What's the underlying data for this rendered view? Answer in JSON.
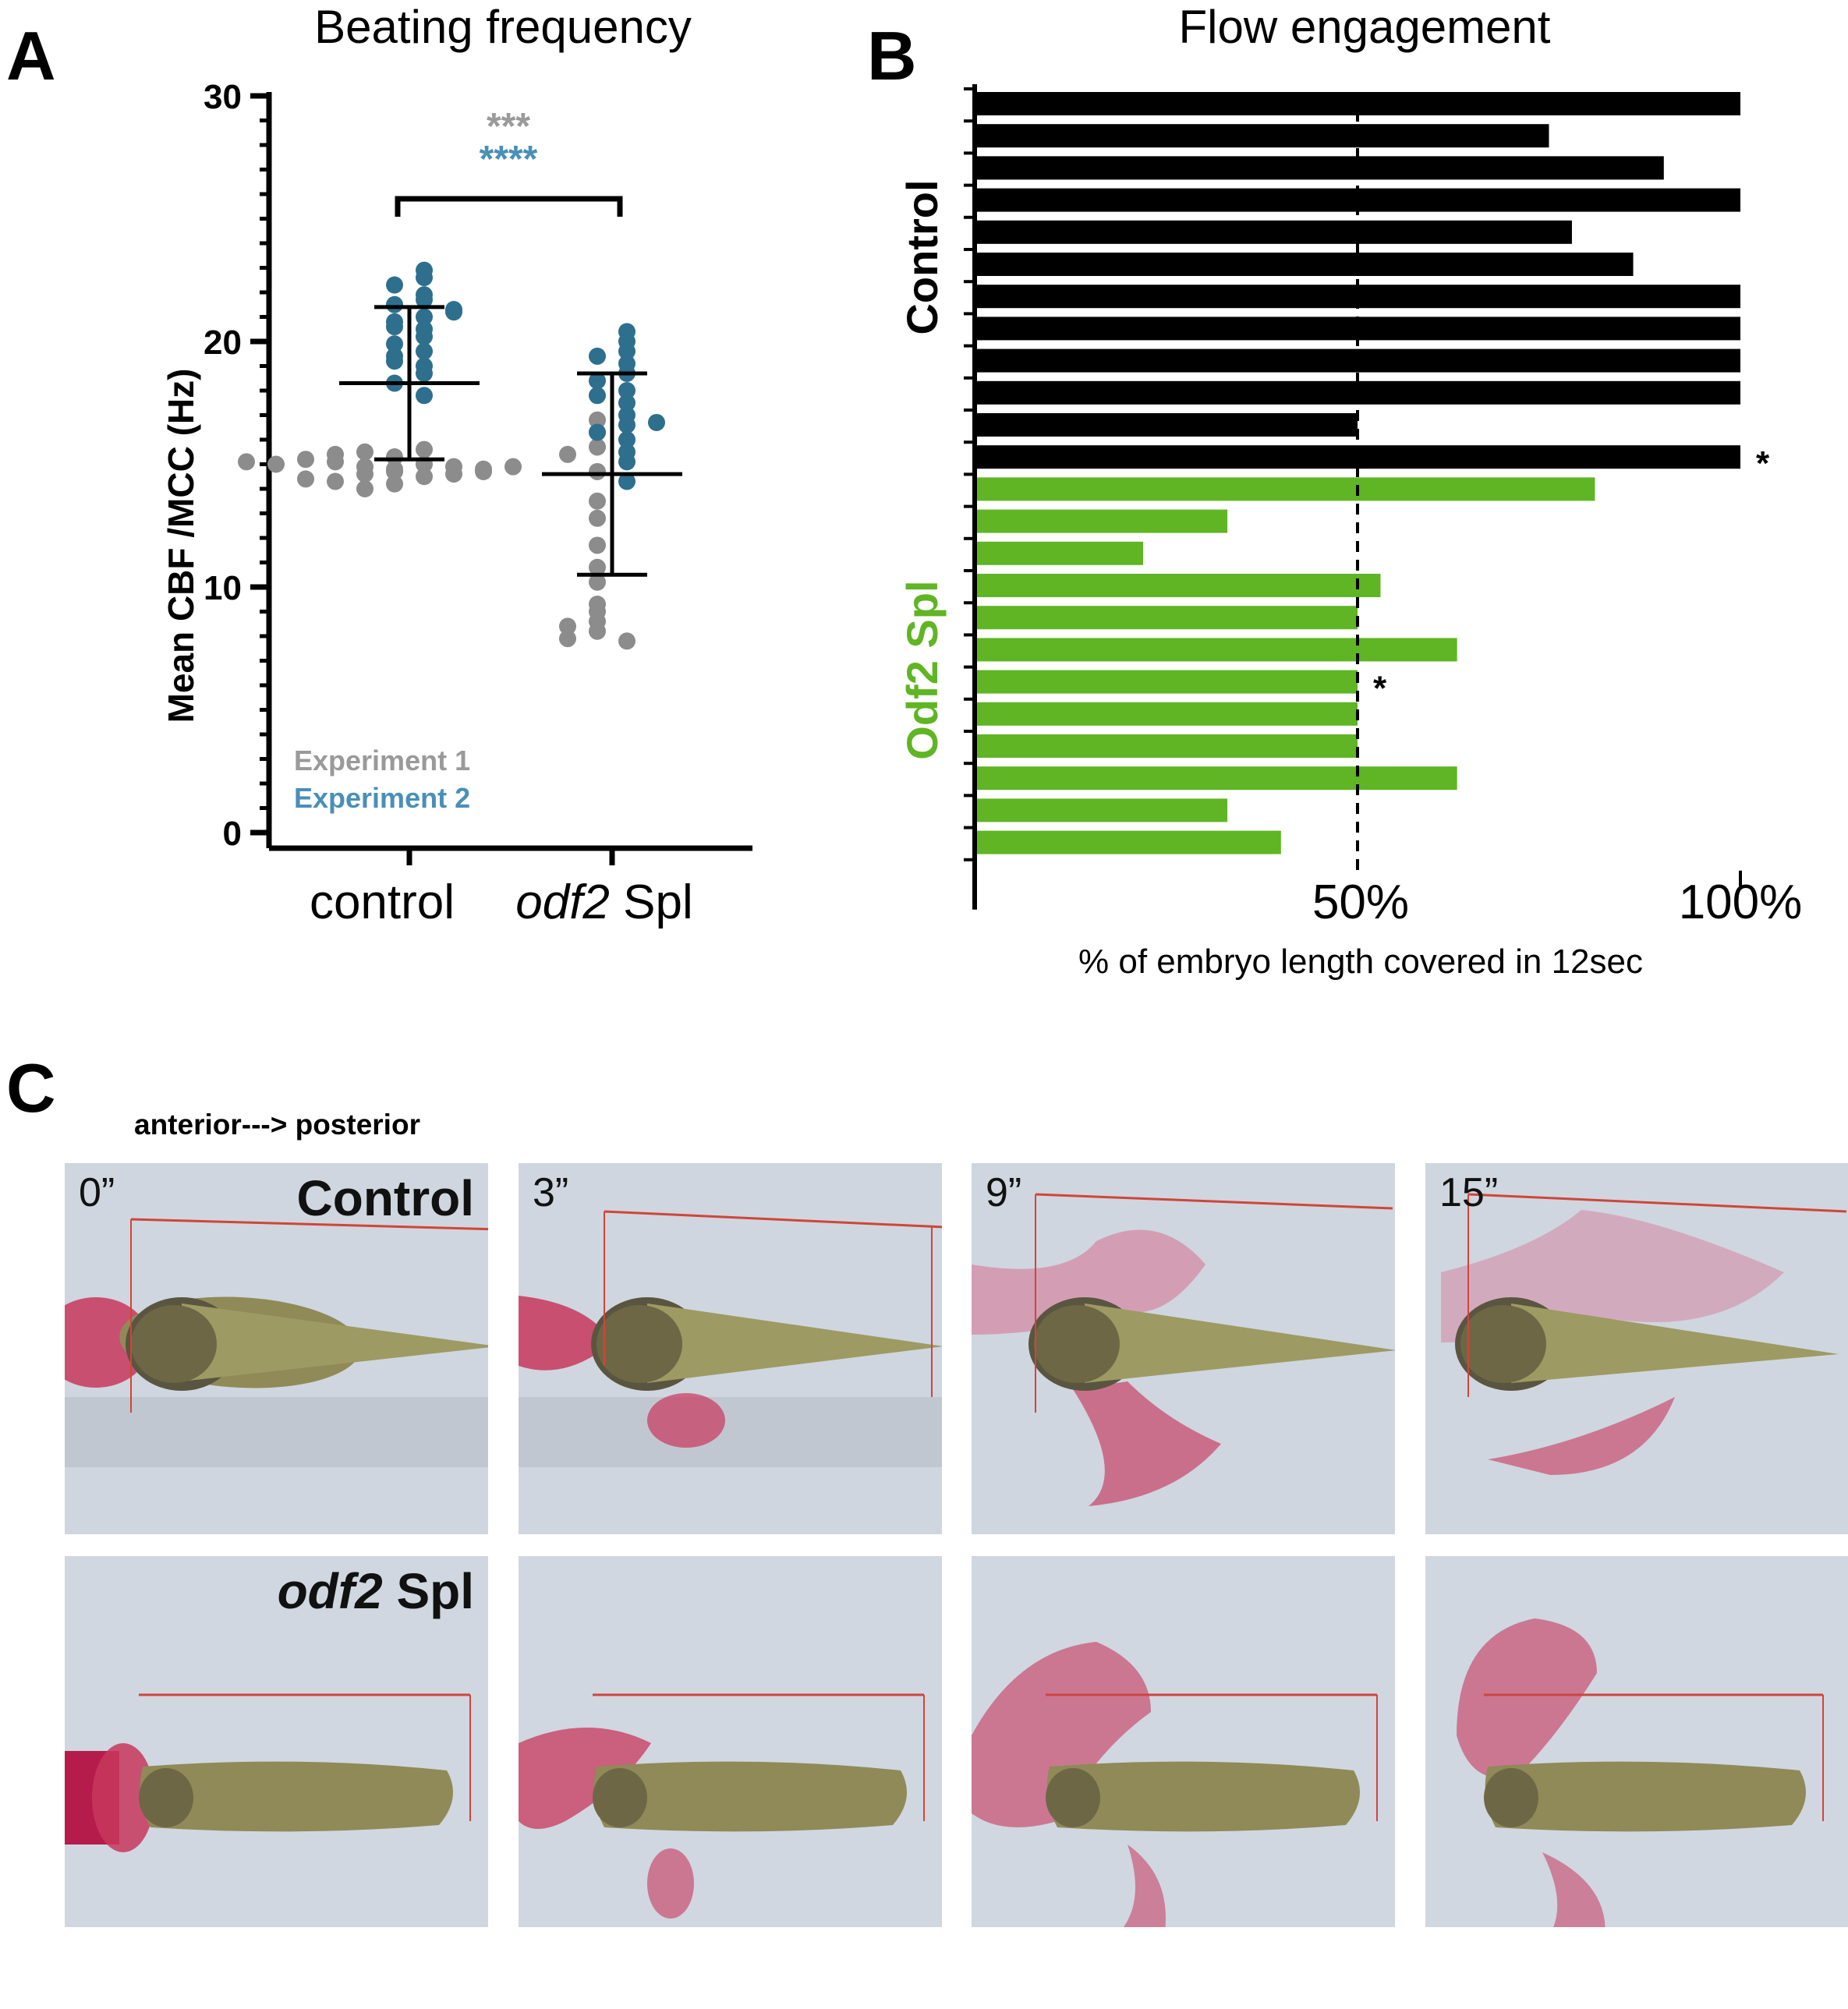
{
  "panels": {
    "a": "A",
    "b": "B",
    "c": "C"
  },
  "chart_data": [
    {
      "type": "scatter",
      "title": "Beating frequency",
      "ylabel": "Mean CBF /MCC (Hz)",
      "ylim": [
        0,
        30
      ],
      "yticks": [
        "0",
        "10",
        "20",
        "30"
      ],
      "categories": [
        "control",
        "Spl"
      ],
      "category_italic_prefix": [
        "",
        "odf2"
      ],
      "legend": [
        "Experiment 1",
        "Experiment 2"
      ],
      "colors": {
        "Experiment 1": "#8c8c8c",
        "Experiment 2": "#2e6f8e"
      },
      "significance": [
        {
          "text": "***",
          "color": "#9a9a9a"
        },
        {
          "text": "****",
          "color": "#4a8fb8"
        }
      ],
      "summary": [
        {
          "group": "control",
          "mean": 18.3,
          "lower": 15.2,
          "upper": 21.4
        },
        {
          "group": "Spl",
          "mean": 14.6,
          "lower": 10.5,
          "upper": 18.7
        }
      ],
      "series": [
        {
          "name": "Experiment 1",
          "group": "control",
          "values": [
            14.8,
            14.9,
            15.0,
            14.7,
            15.1,
            14.6,
            14.9,
            15.2,
            14.5,
            14.8,
            15.0,
            14.3,
            14.6,
            14.2,
            14.0,
            14.4,
            14.7,
            15.3,
            15.5,
            15.6,
            14.9,
            15.1,
            15.4
          ]
        },
        {
          "name": "Experiment 2",
          "group": "control",
          "values": [
            22.9,
            22.6,
            22.3,
            21.9,
            21.7,
            21.5,
            21.3,
            21.0,
            20.8,
            20.5,
            20.2,
            19.9,
            19.6,
            19.4,
            19.0,
            18.7,
            18.3,
            17.8,
            21.2,
            20.6,
            19.2
          ]
        },
        {
          "name": "Experiment 1",
          "group": "Spl",
          "values": [
            16.8,
            15.7,
            15.4,
            14.7,
            13.5,
            12.8,
            11.7,
            10.8,
            10.2,
            9.3,
            8.6,
            8.2,
            7.9,
            7.8,
            8.4,
            9.0,
            16.3
          ]
        },
        {
          "name": "Experiment 2",
          "group": "Spl",
          "values": [
            20.4,
            20.0,
            19.6,
            19.4,
            19.1,
            18.7,
            18.4,
            18.0,
            17.5,
            17.0,
            16.6,
            16.3,
            16.0,
            15.5,
            15.1,
            14.3,
            17.8,
            16.7
          ]
        }
      ]
    },
    {
      "type": "bar",
      "orientation": "horizontal",
      "title": "Flow engagement",
      "xlabel": "% of embryo length covered in 12sec",
      "xticks": [
        "50%",
        "100%"
      ],
      "xlim": [
        0,
        100
      ],
      "reference_line": 50,
      "series": [
        {
          "name": "Control",
          "color": "#000000",
          "values": [
            100,
            75,
            90,
            100,
            78,
            86,
            100,
            100,
            100,
            100,
            50,
            100
          ],
          "marked": [
            11
          ]
        },
        {
          "name": "Odf2 Spl",
          "color": "#5fb523",
          "values": [
            81,
            33,
            22,
            53,
            50,
            63,
            50,
            50,
            50,
            63,
            33,
            40
          ],
          "marked": [
            6
          ]
        }
      ],
      "marker": "*"
    }
  ],
  "panel_c": {
    "direction_label": "anterior---> posterior",
    "timepoints": [
      "0”",
      "3”",
      "9”",
      "15”"
    ],
    "rows": [
      {
        "label": "Control",
        "label_italic": ""
      },
      {
        "label": "Spl",
        "label_italic": "odf2"
      }
    ]
  }
}
